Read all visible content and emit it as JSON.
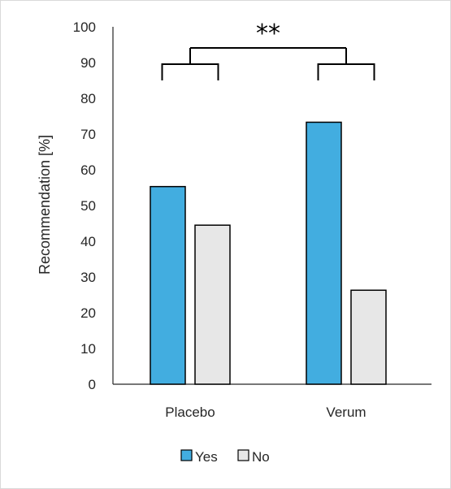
{
  "chart_data": {
    "type": "bar",
    "categories": [
      "Placebo",
      "Verum"
    ],
    "series": [
      {
        "name": "Yes",
        "values": [
          55.3,
          73.3
        ],
        "color": "#42ade0"
      },
      {
        "name": "No",
        "values": [
          44.5,
          26.3
        ],
        "color": "#e7e7e7"
      }
    ],
    "title": "",
    "xlabel": "",
    "ylabel": "Recommendation [%]",
    "ylim": [
      0,
      100
    ],
    "yticks": [
      0,
      10,
      20,
      30,
      40,
      50,
      60,
      70,
      80,
      90,
      100
    ],
    "grid": false,
    "legend_position": "bottom",
    "annotations": [
      {
        "type": "significance-bracket",
        "text": "**",
        "between": [
          "Placebo",
          "Verum"
        ]
      }
    ]
  }
}
